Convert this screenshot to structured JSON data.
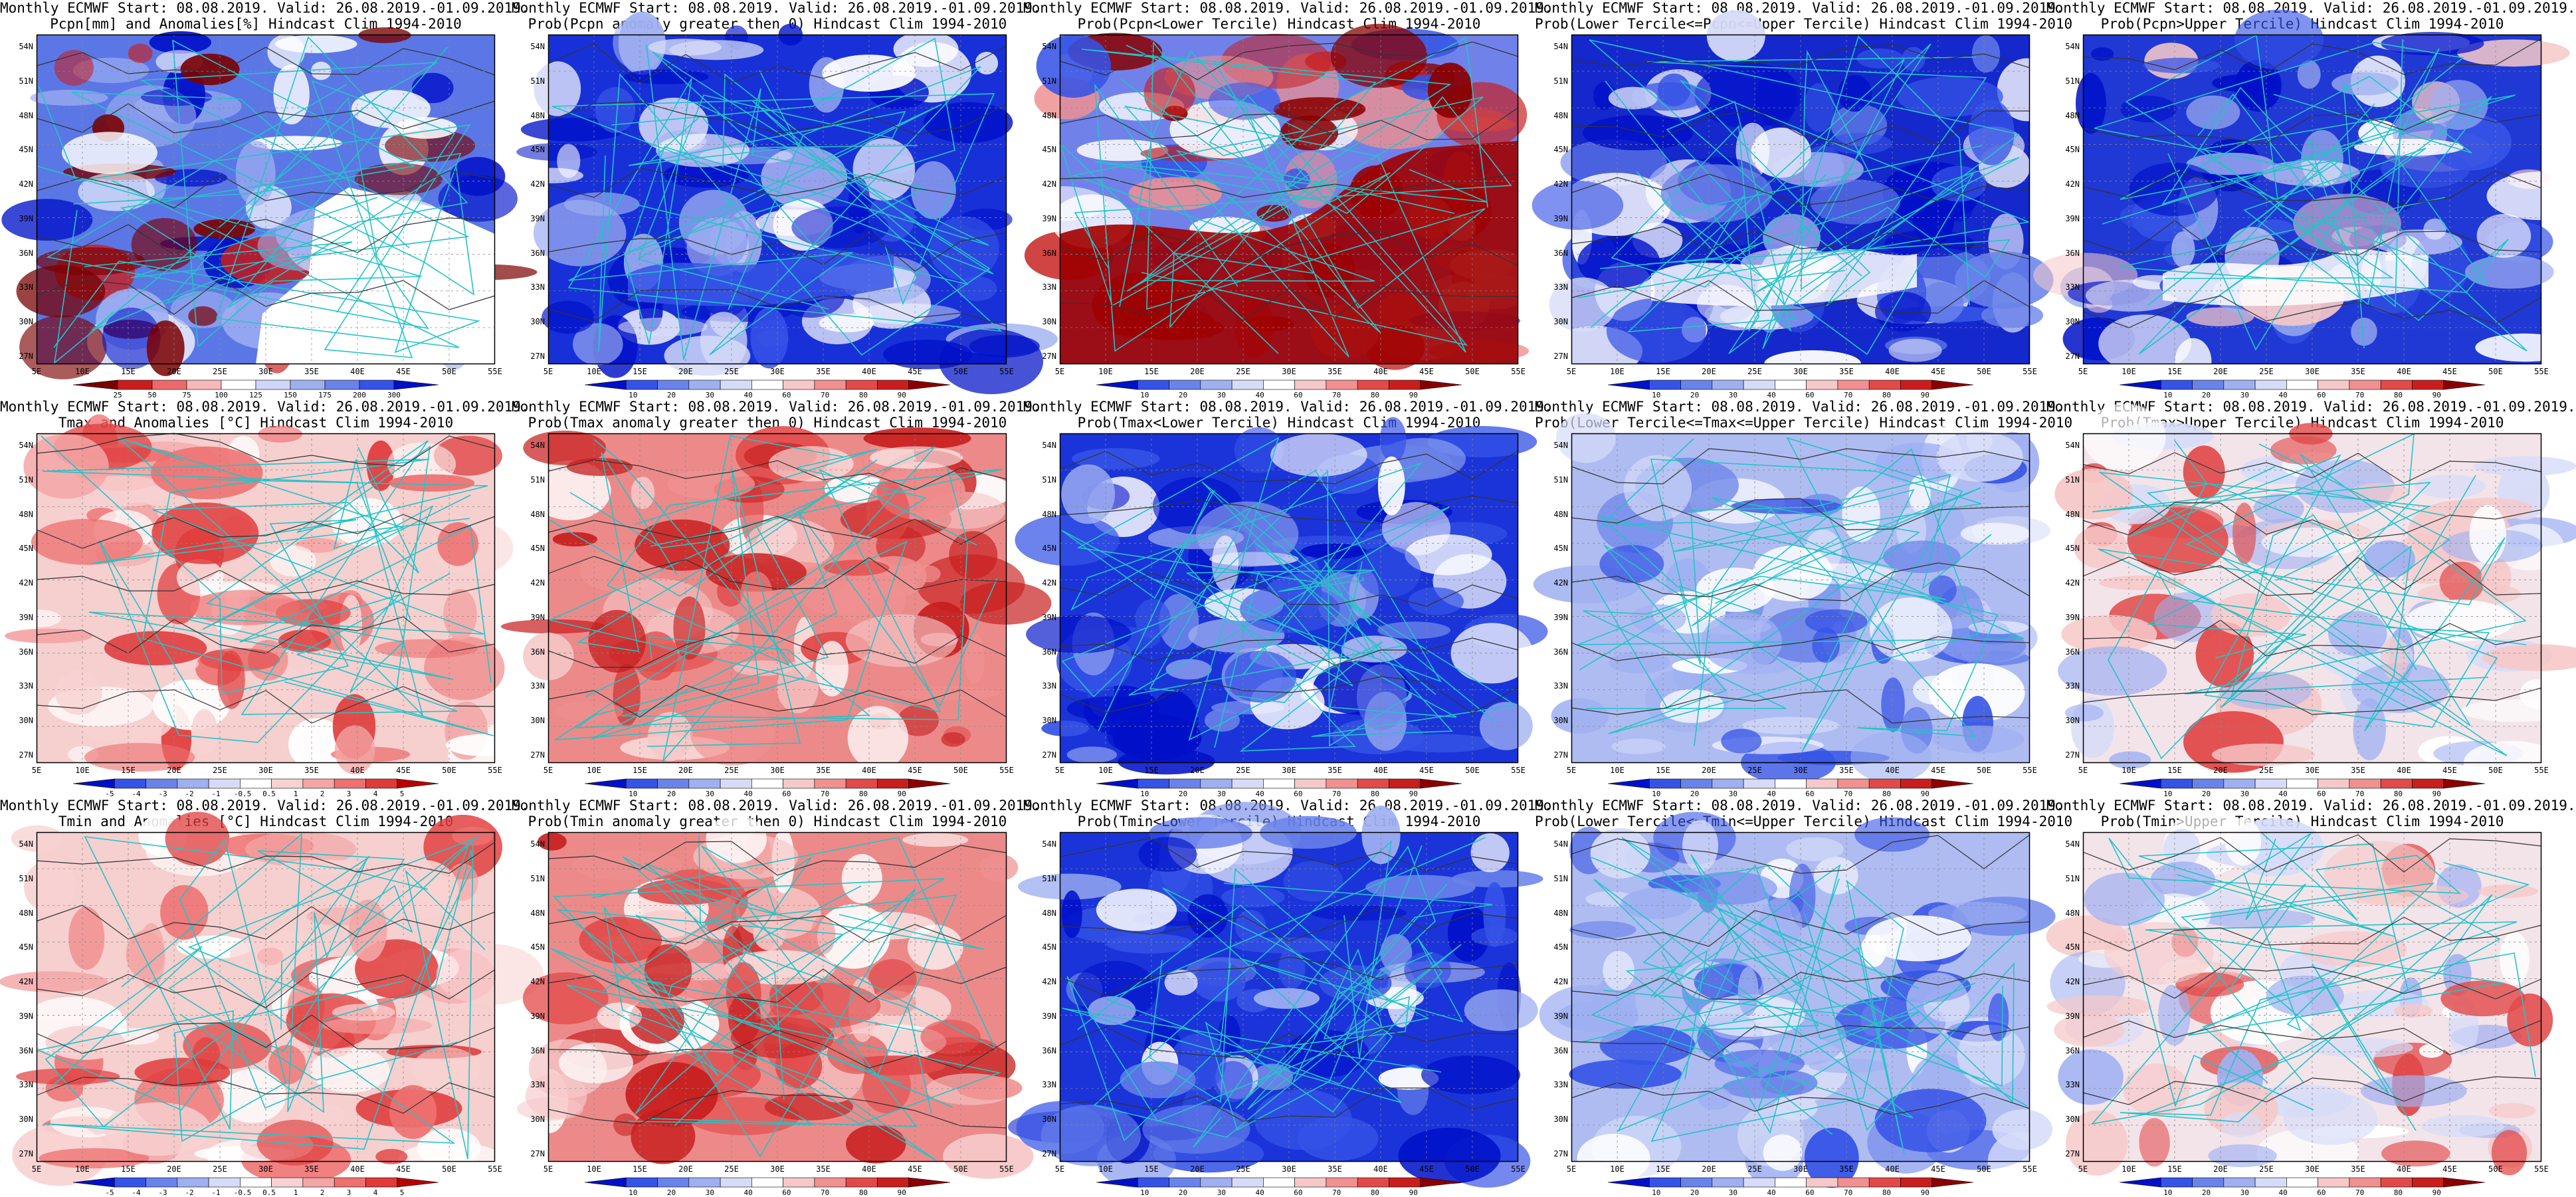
{
  "ticks": {
    "lat": [
      "54N",
      "51N",
      "48N",
      "45N",
      "42N",
      "39N",
      "36N",
      "33N",
      "30N",
      "27N"
    ],
    "lon": [
      "5E",
      "10E",
      "15E",
      "20E",
      "25E",
      "30E",
      "35E",
      "40E",
      "45E",
      "50E",
      "55E"
    ]
  },
  "scales": {
    "pcpn_anom": {
      "colors": [
        "#7a0000",
        "#c81e1e",
        "#ee6a6a",
        "#f6b8b8",
        "#ffffff",
        "#cfd6f7",
        "#9fb0f1",
        "#6a83ea",
        "#3553e6",
        "#0010c8"
      ],
      "labels": [
        "25",
        "50",
        "75",
        "100",
        "125",
        "150",
        "175",
        "200",
        "300"
      ]
    },
    "prob": {
      "colors": [
        "#0010c8",
        "#3553e6",
        "#6a83ea",
        "#9fb0f1",
        "#d6dcf8",
        "#ffffff",
        "#f6c8c8",
        "#f09090",
        "#e24a4a",
        "#c81e1e",
        "#8a0000"
      ],
      "labels": [
        "10",
        "20",
        "30",
        "40",
        "60",
        "70",
        "80",
        "90"
      ]
    },
    "temp_anom": {
      "colors": [
        "#0010c8",
        "#3553e6",
        "#6a83ea",
        "#9fb0f1",
        "#d6dcf8",
        "#ffffff",
        "#f8d2d2",
        "#f4a6a6",
        "#ee7070",
        "#e03a3a",
        "#b80000"
      ],
      "labels": [
        "-5",
        "-4",
        "-3",
        "-2",
        "-1",
        "-0.5",
        "0.5",
        "1",
        "2",
        "3",
        "4",
        "5"
      ]
    },
    "temp_anom2": {
      "colors": [
        "#0010c8",
        "#3553e6",
        "#6a83ea",
        "#9fb0f1",
        "#d6dcf8",
        "#ffffff",
        "#f8d2d2",
        "#f4a6a6",
        "#ee7070",
        "#e03a3a",
        "#b80000"
      ],
      "labels": [
        "-5",
        "-4",
        "-3",
        "-2",
        "-1",
        "-0.5",
        "0.5",
        "1",
        "2",
        "3",
        "4",
        "5"
      ]
    }
  },
  "panels": [
    {
      "title1": "Monthly ECMWF Start: 08.08.2019. Valid: 26.08.2019.-01.09.2019.",
      "title2": "Pcpn[mm] and Anomalies[%] Hindcast Clim 1994-2010",
      "scale": "pcpn_anom",
      "pattern": "pcpn_anom"
    },
    {
      "title1": "Monthly ECMWF Start: 08.08.2019. Valid: 26.08.2019.-01.09.2019.",
      "title2": "Prob(Pcpn anomaly greater then 0) Hindcast Clim 1994-2010",
      "scale": "prob",
      "pattern": "blue_heavy"
    },
    {
      "title1": "Monthly ECMWF Start: 08.08.2019. Valid: 26.08.2019.-01.09.2019.",
      "title2": "Prob(Pcpn<Lower Tercile) Hindcast Clim 1994-2010",
      "scale": "prob",
      "pattern": "red_south"
    },
    {
      "title1": "Monthly ECMWF Start: 08.08.2019. Valid: 26.08.2019.-01.09.2019.",
      "title2": "Prob(Lower Tercile<=Pcpn<=Upper Tercile) Hindcast Clim 1994-2010",
      "scale": "prob",
      "pattern": "blue_dark"
    },
    {
      "title1": "Monthly ECMWF Start: 08.08.2019. Valid: 26.08.2019.-01.09.2019.",
      "title2": "Prob(Pcpn>Upper Tercile) Hindcast Clim 1994-2010",
      "scale": "prob",
      "pattern": "blue_dark2"
    },
    {
      "title1": "Monthly ECMWF Start: 08.08.2019. Valid: 26.08.2019.-01.09.2019.",
      "title2": "Tmax and Anomalies [°C] Hindcast Clim 1994-2010",
      "scale": "temp_anom",
      "pattern": "light_red"
    },
    {
      "title1": "Monthly ECMWF Start: 08.08.2019. Valid: 26.08.2019.-01.09.2019.",
      "title2": "Prob(Tmax anomaly greater then 0) Hindcast Clim 1994-2010",
      "scale": "prob",
      "pattern": "red_heavy"
    },
    {
      "title1": "Monthly ECMWF Start: 08.08.2019. Valid: 26.08.2019.-01.09.2019.",
      "title2": "Prob(Tmax<Lower Tercile) Hindcast Clim 1994-2010",
      "scale": "prob",
      "pattern": "blue_heavy2"
    },
    {
      "title1": "Monthly ECMWF Start: 08.08.2019. Valid: 26.08.2019.-01.09.2019.",
      "title2": "Prob(Lower Tercile<=Tmax<=Upper Tercile) Hindcast Clim 1994-2010",
      "scale": "prob",
      "pattern": "blue_light"
    },
    {
      "title1": "Monthly ECMWF Start: 08.08.2019. Valid: 26.08.2019.-01.09.2019.",
      "title2": "Prob(Tmax>Upper Tercile) Hindcast Clim 1994-2010",
      "scale": "prob",
      "pattern": "mixed_light"
    },
    {
      "title1": "Monthly ECMWF Start: 08.08.2019. Valid: 26.08.2019.-01.09.2019.",
      "title2": "Tmin and Anomalies [°C] Hindcast Clim 1994-2010",
      "scale": "temp_anom2",
      "pattern": "light_red"
    },
    {
      "title1": "Monthly ECMWF Start: 08.08.2019. Valid: 26.08.2019.-01.09.2019.",
      "title2": "Prob(Tmin anomaly greater then 0) Hindcast Clim 1994-2010",
      "scale": "prob",
      "pattern": "red_heavy"
    },
    {
      "title1": "Monthly ECMWF Start: 08.08.2019. Valid: 26.08.2019.-01.09.2019.",
      "title2": "Prob(Tmin<Lower Tercile) Hindcast Clim 1994-2010",
      "scale": "prob",
      "pattern": "blue_heavy2"
    },
    {
      "title1": "Monthly ECMWF Start: 08.08.2019. Valid: 26.08.2019.-01.09.2019.",
      "title2": "Prob(Lower Tercile<=Tmin<=Upper Tercile) Hindcast Clim 1994-2010",
      "scale": "prob",
      "pattern": "blue_light"
    },
    {
      "title1": "Monthly ECMWF Start: 08.08.2019. Valid: 26.08.2019.-01.09.2019.",
      "title2": "Prob(Tmin>Upper Tercile) Hindcast Clim 1994-2010",
      "scale": "prob",
      "pattern": "mixed_light"
    }
  ]
}
